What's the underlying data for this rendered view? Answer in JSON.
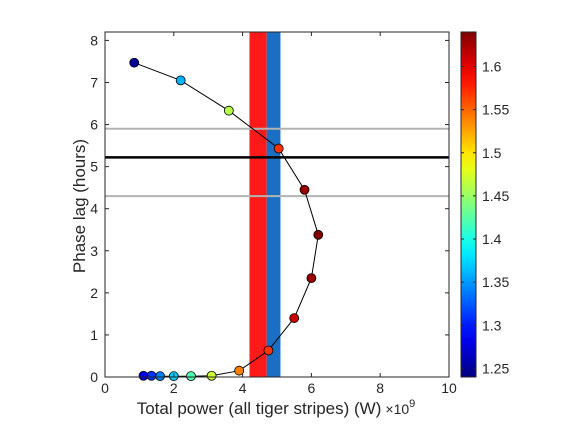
{
  "chart_data": {
    "type": "scatter",
    "title": "",
    "xlabel": "Total power (all tiger stripes) (W)",
    "xlabel_multiplier": "×10",
    "xlabel_multiplier_exp": "9",
    "ylabel": "Phase lag (hours)",
    "xlim": [
      0,
      10
    ],
    "ylim": [
      0,
      8.2
    ],
    "xticks": [
      "0",
      "2",
      "4",
      "6",
      "8",
      "10"
    ],
    "yticks": [
      "0",
      "1",
      "2",
      "3",
      "4",
      "5",
      "6",
      "7",
      "8"
    ],
    "grid": false,
    "colorbar": {
      "range": [
        1.24,
        1.64
      ],
      "colormap": "jet",
      "ticks": [
        "1.25",
        "1.3",
        "1.35",
        "1.4",
        "1.45",
        "1.5",
        "1.55",
        "1.6"
      ]
    },
    "vertical_bands": [
      {
        "x_range": [
          4.2,
          4.7
        ],
        "color": "#ff1a1a"
      },
      {
        "x_range": [
          4.7,
          5.1
        ],
        "color": "#1a6fc4"
      }
    ],
    "horizontal_lines": [
      {
        "y": 5.9,
        "color": "#b3b3b3"
      },
      {
        "y": 5.22,
        "color": "#000000"
      },
      {
        "y": 4.3,
        "color": "#b3b3b3"
      }
    ],
    "series": [
      {
        "points": [
          {
            "x": 0.85,
            "y": 7.47,
            "c": 1.25
          },
          {
            "x": 2.2,
            "y": 7.05,
            "c": 1.36
          },
          {
            "x": 3.6,
            "y": 6.33,
            "c": 1.46
          },
          {
            "x": 5.05,
            "y": 5.43,
            "c": 1.57
          },
          {
            "x": 5.8,
            "y": 4.45,
            "c": 1.63
          },
          {
            "x": 6.2,
            "y": 3.38,
            "c": 1.64
          },
          {
            "x": 6.0,
            "y": 2.35,
            "c": 1.63
          },
          {
            "x": 5.5,
            "y": 1.4,
            "c": 1.61
          },
          {
            "x": 4.75,
            "y": 0.63,
            "c": 1.57
          },
          {
            "x": 3.9,
            "y": 0.15,
            "c": 1.54
          },
          {
            "x": 3.1,
            "y": 0.03,
            "c": 1.47
          },
          {
            "x": 2.5,
            "y": 0.02,
            "c": 1.42
          },
          {
            "x": 2.0,
            "y": 0.02,
            "c": 1.37
          },
          {
            "x": 1.6,
            "y": 0.02,
            "c": 1.34
          },
          {
            "x": 1.35,
            "y": 0.03,
            "c": 1.31
          },
          {
            "x": 1.12,
            "y": 0.03,
            "c": 1.28
          }
        ]
      }
    ]
  }
}
